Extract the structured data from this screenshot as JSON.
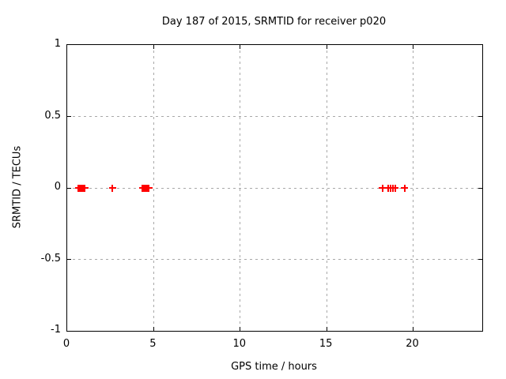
{
  "chart_data": {
    "type": "scatter",
    "title": "Day 187 of 2015, SRMTID for receiver p020",
    "xlabel": "GPS time / hours",
    "ylabel": "SRMTID / TECUs",
    "xlim": [
      0,
      24
    ],
    "ylim": [
      -1,
      1
    ],
    "grid": true,
    "legend": "none",
    "marker": "plus",
    "marker_color": "#ff0000",
    "grid_color": "#a8a8a8",
    "x_ticks": [
      {
        "value": 0,
        "label": "0"
      },
      {
        "value": 5,
        "label": "5"
      },
      {
        "value": 10,
        "label": "10"
      },
      {
        "value": 15,
        "label": "15"
      },
      {
        "value": 20,
        "label": "20"
      }
    ],
    "y_ticks": [
      {
        "value": 1,
        "label": "1"
      },
      {
        "value": 0.5,
        "label": "0.5"
      },
      {
        "value": 0,
        "label": "0"
      },
      {
        "value": -0.5,
        "label": "-0.5"
      },
      {
        "value": -1,
        "label": "-1"
      }
    ],
    "series": [
      {
        "name": "SRMTID",
        "x": [
          0.65,
          0.69,
          0.73,
          0.77,
          0.81,
          0.85,
          0.89,
          0.93,
          0.97,
          1.01,
          2.62,
          4.35,
          4.4,
          4.45,
          4.5,
          4.55,
          4.62,
          4.73,
          18.23,
          18.58,
          18.7,
          18.82,
          18.95,
          19.5
        ],
        "y": [
          0,
          0,
          0,
          0,
          0,
          0,
          0,
          0,
          0,
          0,
          0,
          0,
          0,
          0,
          0,
          0,
          0,
          0,
          0,
          0,
          0,
          0,
          0,
          0
        ]
      }
    ]
  }
}
